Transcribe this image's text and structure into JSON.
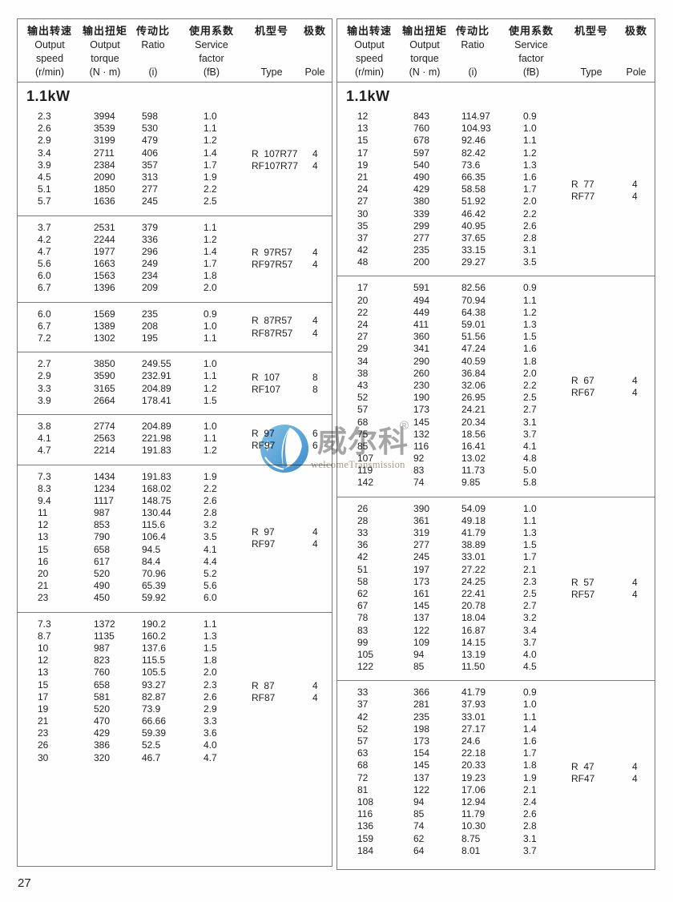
{
  "page": {
    "number": "27"
  },
  "watermark": {
    "brand": "威尔科",
    "registered_mark": "®",
    "subtitle": "welcomeTransmission",
    "circle_color_light": "#85c3e9",
    "circle_color_dark": "#3a8ccb",
    "text_color": "#a7a7a7"
  },
  "header": {
    "columns": [
      {
        "zh": "输出转速",
        "en1": "Output",
        "en2": "speed",
        "unit": "(r/min)"
      },
      {
        "zh": "输出扭矩",
        "en1": "Output",
        "en2": "torque",
        "unit": "(N · m)"
      },
      {
        "zh": "传动比",
        "en1": "Ratio",
        "en2": "",
        "unit": "(i)"
      },
      {
        "zh": "使用系数",
        "en1": "Service",
        "en2": "factor",
        "unit": "(fB)"
      },
      {
        "zh": "机型号",
        "en1": "",
        "en2": "",
        "unit": "Type"
      },
      {
        "zh": "极数",
        "en1": "",
        "en2": "",
        "unit": "Pole"
      }
    ]
  },
  "power_label": "1.1kW",
  "left_table": {
    "groups": [
      {
        "rows": [
          [
            "2.3",
            "3994",
            "598",
            "1.0"
          ],
          [
            "2.6",
            "3539",
            "530",
            "1.1"
          ],
          [
            "2.9",
            "3199",
            "479",
            "1.2"
          ],
          [
            "3.4",
            "2711",
            "406",
            "1.4"
          ],
          [
            "3.9",
            "2384",
            "357",
            "1.7"
          ],
          [
            "4.5",
            "2090",
            "313",
            "1.9"
          ],
          [
            "5.1",
            "1850",
            "277",
            "2.2"
          ],
          [
            "5.7",
            "1636",
            "245",
            "2.5"
          ]
        ],
        "types": [
          {
            "type": "R  107R77",
            "pole": "4"
          },
          {
            "type": "RF107R77",
            "pole": "4"
          }
        ]
      },
      {
        "rows": [
          [
            "3.7",
            "2531",
            "379",
            "1.1"
          ],
          [
            "4.2",
            "2244",
            "336",
            "1.2"
          ],
          [
            "4.7",
            "1977",
            "296",
            "1.4"
          ],
          [
            "5.6",
            "1663",
            "249",
            "1.7"
          ],
          [
            "6.0",
            "1563",
            "234",
            "1.8"
          ],
          [
            "6.7",
            "1396",
            "209",
            "2.0"
          ]
        ],
        "types": [
          {
            "type": "R  97R57",
            "pole": "4"
          },
          {
            "type": "RF97R57",
            "pole": "4"
          }
        ]
      },
      {
        "rows": [
          [
            "6.0",
            "1569",
            "235",
            "0.9"
          ],
          [
            "6.7",
            "1389",
            "208",
            "1.0"
          ],
          [
            "7.2",
            "1302",
            "195",
            "1.1"
          ]
        ],
        "types": [
          {
            "type": "R  87R57",
            "pole": "4"
          },
          {
            "type": "RF87R57",
            "pole": "4"
          }
        ]
      },
      {
        "rows": [
          [
            "2.7",
            "3850",
            "249.55",
            "1.0"
          ],
          [
            "2.9",
            "3590",
            "232.91",
            "1.1"
          ],
          [
            "3.3",
            "3165",
            "204.89",
            "1.2"
          ],
          [
            "3.9",
            "2664",
            "178.41",
            "1.5"
          ]
        ],
        "types": [
          {
            "type": "R  107",
            "pole": "8"
          },
          {
            "type": "RF107",
            "pole": "8"
          }
        ]
      },
      {
        "rows": [
          [
            "3.8",
            "2774",
            "204.89",
            "1.0"
          ],
          [
            "4.1",
            "2563",
            "221.98",
            "1.1"
          ],
          [
            "4.7",
            "2214",
            "191.83",
            "1.2"
          ]
        ],
        "types": [
          {
            "type": "R  97",
            "pole": "6"
          },
          {
            "type": "RF97",
            "pole": "6"
          }
        ]
      },
      {
        "rows": [
          [
            "7.3",
            "1434",
            "191.83",
            "1.9"
          ],
          [
            "8.3",
            "1234",
            "168.02",
            "2.2"
          ],
          [
            "9.4",
            "1117",
            "148.75",
            "2.6"
          ],
          [
            "11",
            "987",
            "130.44",
            "2.8"
          ],
          [
            "12",
            "853",
            "115.6",
            "3.2"
          ],
          [
            "13",
            "790",
            "106.4",
            "3.5"
          ],
          [
            "15",
            "658",
            "94.5",
            "4.1"
          ],
          [
            "16",
            "617",
            "84.4",
            "4.4"
          ],
          [
            "20",
            "520",
            "70.96",
            "5.2"
          ],
          [
            "21",
            "490",
            "65.39",
            "5.6"
          ],
          [
            "23",
            "450",
            "59.92",
            "6.0"
          ]
        ],
        "types": [
          {
            "type": "R  97",
            "pole": "4"
          },
          {
            "type": "RF97",
            "pole": "4"
          }
        ]
      },
      {
        "rows": [
          [
            "7.3",
            "1372",
            "190.2",
            "1.1"
          ],
          [
            "8.7",
            "1135",
            "160.2",
            "1.3"
          ],
          [
            "10",
            "987",
            "137.6",
            "1.5"
          ],
          [
            "12",
            "823",
            "115.5",
            "1.8"
          ],
          [
            "13",
            "760",
            "105.5",
            "2.0"
          ],
          [
            "15",
            "658",
            "93.27",
            "2.3"
          ],
          [
            "17",
            "581",
            "82.87",
            "2.6"
          ],
          [
            "19",
            "520",
            "73.9",
            "2.9"
          ],
          [
            "21",
            "470",
            "66.66",
            "3.3"
          ],
          [
            "23",
            "429",
            "59.39",
            "3.6"
          ],
          [
            "26",
            "386",
            "52.5",
            "4.0"
          ],
          [
            "30",
            "320",
            "46.7",
            "4.7"
          ]
        ],
        "types": [
          {
            "type": "R  87",
            "pole": "4"
          },
          {
            "type": "RF87",
            "pole": "4"
          }
        ]
      }
    ]
  },
  "right_table": {
    "groups": [
      {
        "rows": [
          [
            "12",
            "843",
            "114.97",
            "0.9"
          ],
          [
            "13",
            "760",
            "104.93",
            "1.0"
          ],
          [
            "15",
            "678",
            "92.46",
            "1.1"
          ],
          [
            "17",
            "597",
            "82.42",
            "1.2"
          ],
          [
            "19",
            "540",
            "73.6",
            "1.3"
          ],
          [
            "21",
            "490",
            "66.35",
            "1.6"
          ],
          [
            "24",
            "429",
            "58.58",
            "1.7"
          ],
          [
            "27",
            "380",
            "51.92",
            "2.0"
          ],
          [
            "30",
            "339",
            "46.42",
            "2.2"
          ],
          [
            "35",
            "299",
            "40.95",
            "2.6"
          ],
          [
            "37",
            "277",
            "37.65",
            "2.8"
          ],
          [
            "42",
            "235",
            "33.15",
            "3.1"
          ],
          [
            "48",
            "200",
            "29.27",
            "3.5"
          ]
        ],
        "types": [
          {
            "type": "R  77",
            "pole": "4"
          },
          {
            "type": "RF77",
            "pole": "4"
          }
        ]
      },
      {
        "rows": [
          [
            "17",
            "591",
            "82.56",
            "0.9"
          ],
          [
            "20",
            "494",
            "70.94",
            "1.1"
          ],
          [
            "22",
            "449",
            "64.38",
            "1.2"
          ],
          [
            "24",
            "411",
            "59.01",
            "1.3"
          ],
          [
            "27",
            "360",
            "51.56",
            "1.5"
          ],
          [
            "29",
            "341",
            "47.24",
            "1.6"
          ],
          [
            "34",
            "290",
            "40.59",
            "1.8"
          ],
          [
            "38",
            "260",
            "36.84",
            "2.0"
          ],
          [
            "43",
            "230",
            "32.06",
            "2.2"
          ],
          [
            "52",
            "190",
            "26.95",
            "2.5"
          ],
          [
            "57",
            "173",
            "24.21",
            "2.7"
          ],
          [
            "68",
            "145",
            "20.34",
            "3.1"
          ],
          [
            "75",
            "132",
            "18.56",
            "3.7"
          ],
          [
            "85",
            "116",
            "16.41",
            "4.1"
          ],
          [
            "107",
            "92",
            "13.02",
            "4.8"
          ],
          [
            "119",
            "83",
            "11.73",
            "5.0"
          ],
          [
            "142",
            "74",
            "9.85",
            "5.8"
          ]
        ],
        "types": [
          {
            "type": "R  67",
            "pole": "4"
          },
          {
            "type": "RF67",
            "pole": "4"
          }
        ]
      },
      {
        "rows": [
          [
            "26",
            "390",
            "54.09",
            "1.0"
          ],
          [
            "28",
            "361",
            "49.18",
            "1.1"
          ],
          [
            "33",
            "319",
            "41.79",
            "1.3"
          ],
          [
            "36",
            "277",
            "38.89",
            "1.5"
          ],
          [
            "42",
            "245",
            "33.01",
            "1.7"
          ],
          [
            "51",
            "197",
            "27.22",
            "2.1"
          ],
          [
            "58",
            "173",
            "24.25",
            "2.3"
          ],
          [
            "62",
            "161",
            "22.41",
            "2.5"
          ],
          [
            "67",
            "145",
            "20.78",
            "2.7"
          ],
          [
            "78",
            "137",
            "18.04",
            "3.2"
          ],
          [
            "83",
            "122",
            "16.87",
            "3.4"
          ],
          [
            "99",
            "109",
            "14.15",
            "3.7"
          ],
          [
            "105",
            "94",
            "13.19",
            "4.0"
          ],
          [
            "122",
            "85",
            "11.50",
            "4.5"
          ]
        ],
        "types": [
          {
            "type": "R  57",
            "pole": "4"
          },
          {
            "type": "RF57",
            "pole": "4"
          }
        ]
      },
      {
        "rows": [
          [
            "33",
            "366",
            "41.79",
            "0.9"
          ],
          [
            "37",
            "281",
            "37.93",
            "1.0"
          ],
          [
            "42",
            "235",
            "33.01",
            "1.1"
          ],
          [
            "52",
            "198",
            "27.17",
            "1.4"
          ],
          [
            "57",
            "173",
            "24.6",
            "1.6"
          ],
          [
            "63",
            "154",
            "22.18",
            "1.7"
          ],
          [
            "68",
            "145",
            "20.33",
            "1.8"
          ],
          [
            "72",
            "137",
            "19.23",
            "1.9"
          ],
          [
            "81",
            "122",
            "17.06",
            "2.1"
          ],
          [
            "108",
            "94",
            "12.94",
            "2.4"
          ],
          [
            "116",
            "85",
            "11.79",
            "2.6"
          ],
          [
            "136",
            "74",
            "10.30",
            "2.8"
          ],
          [
            "159",
            "62",
            "8.75",
            "3.1"
          ],
          [
            "184",
            "64",
            "8.01",
            "3.7"
          ]
        ],
        "types": [
          {
            "type": "R  47",
            "pole": "4"
          },
          {
            "type": "RF47",
            "pole": "4"
          }
        ]
      }
    ]
  }
}
